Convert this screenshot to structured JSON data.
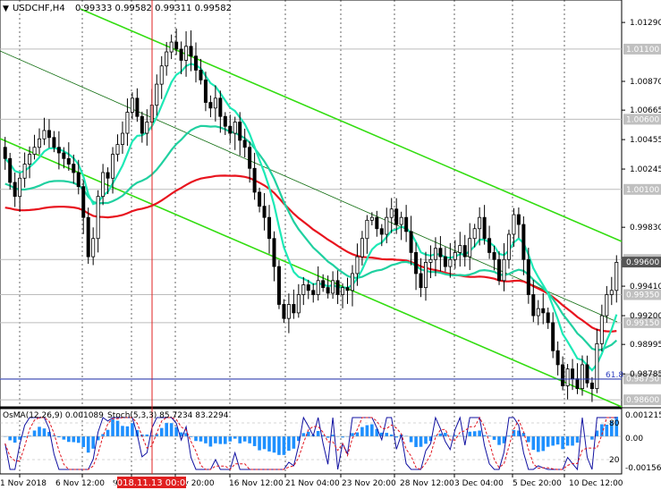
{
  "header": {
    "symbol_label": "USDCHF,H4",
    "ohlc": "0.99333 0.99582 0.99311 0.99582"
  },
  "price_axis": {
    "ticks": [
      "1.01290",
      "1.00870",
      "1.00665",
      "1.00455",
      "1.00245",
      "0.99830",
      "0.99410",
      "0.99200",
      "0.98995",
      "0.98785"
    ],
    "tick_values": [
      1.0129,
      1.0087,
      1.00665,
      1.00455,
      1.00245,
      0.9983,
      0.9941,
      0.992,
      0.98995,
      0.98785
    ]
  },
  "level_labels": [
    {
      "value": 1.011,
      "text": "1.01100"
    },
    {
      "value": 1.006,
      "text": "1.00600"
    },
    {
      "value": 1.001,
      "text": "1.00100"
    },
    {
      "value": 0.996,
      "text": "0.99600"
    },
    {
      "value": 0.9935,
      "text": "0.99350"
    },
    {
      "value": 0.9915,
      "text": "0.99150"
    },
    {
      "value": 0.9875,
      "text": "0.98750"
    },
    {
      "value": 0.986,
      "text": "0.98600"
    }
  ],
  "fibo_label": "61.8",
  "osma": {
    "label": "OsMA(12,26,9) 0.001089",
    "stoch_label": "Stoch(5,3,3) 85.7234 83.2294",
    "ticks_right": [
      "0.001215",
      "0.00",
      "-0.001566"
    ],
    "ticks_left": [
      "80",
      "20"
    ]
  },
  "time_axis": {
    "labels": [
      "1 Nov 2018",
      "6 Nov 12:00",
      "9",
      "ov 20:00",
      "16 Nov 12:00",
      "21 Nov 04:00",
      "23 Nov 20:00",
      "28 Nov 12:00",
      "3 Dec 04:00",
      "5 Dec 20:00",
      "10 Dec 12:00"
    ],
    "highlight": "2018.11.13 00:00"
  },
  "colors": {
    "candle": "#000000",
    "ma_fast": "#1de9b6",
    "ma_mid": "#20d0a0",
    "ma_slow": "#e8141e",
    "channel": "#33dd11",
    "levels": "#bbbbbb",
    "fibo": "#3040c0",
    "osma_bar": "#1e90ff",
    "stoch_main": "#1010a0",
    "stoch_signal": "#e0141e"
  },
  "chart_data": {
    "type": "candlestick",
    "closes": [
      1.0032,
      1.0015,
      1.0005,
      1.0018,
      1.0028,
      1.0035,
      1.004,
      1.0046,
      1.0052,
      1.0047,
      1.004,
      1.0036,
      1.0032,
      1.0028,
      1.0022,
      1.0012,
      0.999,
      0.9962,
      0.9975,
      1.0005,
      1.0022,
      1.0018,
      1.0035,
      1.0042,
      1.005,
      1.0065,
      1.0075,
      1.0062,
      1.005,
      1.0058,
      1.007,
      1.0085,
      1.0098,
      1.0108,
      1.0115,
      1.011,
      1.0102,
      1.0112,
      1.0105,
      1.0095,
      1.0088,
      1.0072,
      1.0068,
      1.0075,
      1.0062,
      1.0055,
      1.005,
      1.0058,
      1.0045,
      1.004,
      1.0025,
      1.0008,
      0.9998,
      0.999,
      0.9975,
      0.9955,
      0.9928,
      0.9918,
      0.9928,
      0.9922,
      0.9935,
      0.9942,
      0.9938,
      0.9935,
      0.9945,
      0.994,
      0.9936,
      0.9945,
      0.9935,
      0.994,
      0.9938,
      0.995,
      0.9962,
      0.9975,
      0.9988,
      0.999,
      0.9982,
      0.9978,
      0.999,
      0.9996,
      0.9985,
      0.999,
      0.998,
      0.9965,
      0.995,
      0.994,
      0.9958,
      0.996,
      0.9968,
      0.9962,
      0.9955,
      0.996,
      0.9965,
      0.997,
      0.9962,
      0.9975,
      0.9982,
      0.999,
      0.9975,
      0.9965,
      0.996,
      0.9945,
      0.996,
      0.9978,
      0.9992,
      0.9985,
      0.996,
      0.9935,
      0.992,
      0.9925,
      0.9922,
      0.9915,
      0.9895,
      0.9885,
      0.987,
      0.9882,
      0.9875,
      0.9868,
      0.9885,
      0.9872,
      0.9868,
      0.99,
      0.992,
      0.9935,
      0.9938,
      0.9958
    ],
    "last_close": 0.99582,
    "ylim": [
      0.9855,
      1.0145
    ]
  }
}
